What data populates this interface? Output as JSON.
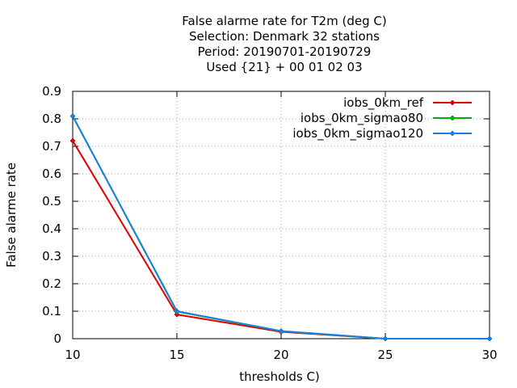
{
  "chart_data": {
    "type": "line",
    "title": [
      "False alarme rate  for T2m (deg C)",
      "Selection: Denmark     32 stations",
      "Period: 20190701-20190729",
      "Used {21} + 00 01 02 03"
    ],
    "xlabel": "thresholds C)",
    "ylabel": "False alarme rate",
    "xlim": [
      10,
      30
    ],
    "ylim": [
      0,
      0.9
    ],
    "xticks": [
      10,
      15,
      20,
      25,
      30
    ],
    "yticks": [
      0,
      0.1,
      0.2,
      0.3,
      0.4,
      0.5,
      0.6,
      0.7,
      0.8,
      0.9
    ],
    "xtick_labels": [
      "10",
      "15",
      "20",
      "25",
      "30"
    ],
    "ytick_labels": [
      "0",
      "0.1",
      "0.2",
      "0.3",
      "0.4",
      "0.5",
      "0.6",
      "0.7",
      "0.8",
      "0.9"
    ],
    "grid": true,
    "legend_position": "top-right",
    "x": [
      10,
      15,
      20,
      25,
      30
    ],
    "series": [
      {
        "name": "iobs_0km_ref",
        "color": "#e00000",
        "values": [
          0.72,
          0.088,
          0.025,
          0.0,
          0.0
        ]
      },
      {
        "name": "iobs_0km_sigmao80",
        "color": "#00b000",
        "values": [
          0.81,
          0.099,
          0.027,
          0.0,
          0.0
        ]
      },
      {
        "name": "iobs_0km_sigmao120",
        "color": "#1a7fe0",
        "values": [
          0.81,
          0.1,
          0.028,
          0.0,
          0.0
        ]
      }
    ]
  }
}
